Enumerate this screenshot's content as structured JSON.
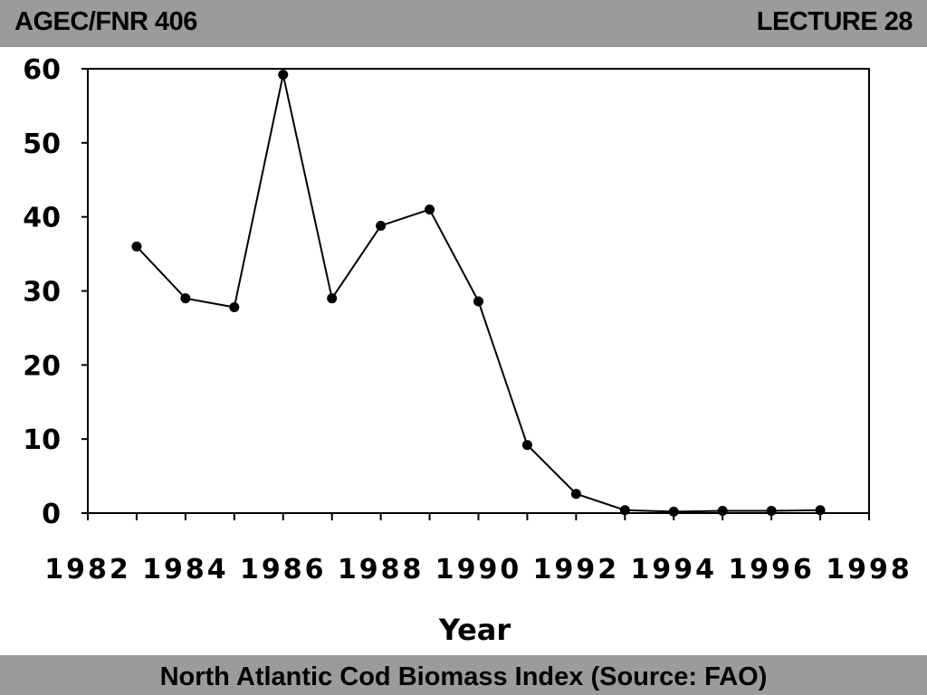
{
  "header": {
    "course": "AGEC/FNR 406",
    "lecture": "LECTURE 28"
  },
  "footer": {
    "caption": "North Atlantic Cod Biomass Index (Source: FAO)"
  },
  "chart_data": {
    "type": "line",
    "title": "",
    "xlabel": "Year",
    "ylabel": "",
    "xlim": [
      1982,
      1998
    ],
    "ylim": [
      0,
      60
    ],
    "xticks": [
      "1982",
      "1984",
      "1986",
      "1988",
      "1990",
      "1992",
      "1994",
      "1996",
      "1998"
    ],
    "yticks": [
      "0",
      "10",
      "20",
      "30",
      "40",
      "50",
      "60"
    ],
    "x": [
      1983,
      1984,
      1985,
      1986,
      1987,
      1988,
      1989,
      1990,
      1991,
      1992,
      1993,
      1994,
      1995,
      1996,
      1997
    ],
    "values": [
      36,
      29,
      27.8,
      59.2,
      29,
      38.8,
      41,
      28.6,
      9.2,
      2.6,
      0.4,
      0.2,
      0.3,
      0.3,
      0.4
    ],
    "line_color": "#000000",
    "grid": false
  }
}
